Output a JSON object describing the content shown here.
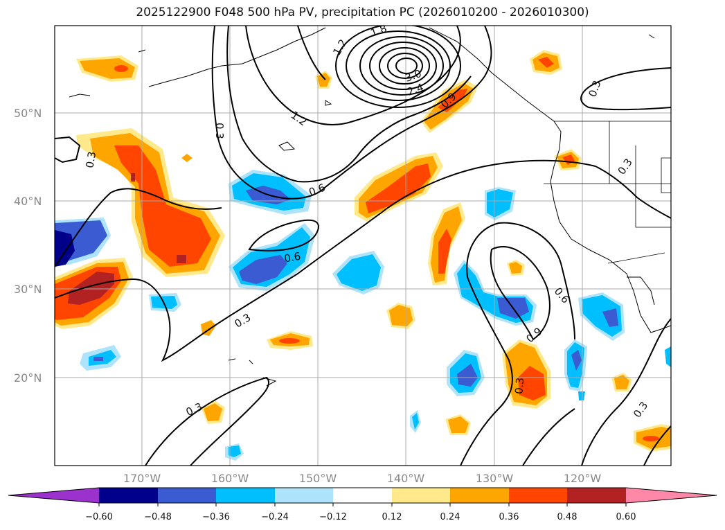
{
  "title": "2025122900 F048 500 hPa PV, precipitation PC (2026010200 - 2026010300)",
  "map": {
    "lat_labels": [
      "50°N",
      "40°N",
      "30°N",
      "20°N"
    ],
    "lon_labels": [
      "170°W",
      "160°W",
      "150°W",
      "140°W",
      "130°W",
      "120°W"
    ],
    "contour_labels": [
      "0.3",
      "0.6",
      "0.9",
      "1.2",
      "1.8",
      "2.4",
      "3.0"
    ]
  },
  "colorbar": {
    "colors": [
      "#9b32cd",
      "#00008b",
      "#3a5bd1",
      "#00bfff",
      "#ade3fb",
      "#ffffff",
      "#ffe98a",
      "#ffa500",
      "#ff4500",
      "#b22222",
      "#ff88a8"
    ],
    "tick_labels": [
      "−0.60",
      "−0.48",
      "−0.36",
      "−0.24",
      "−0.12",
      "0.12",
      "0.24",
      "0.36",
      "0.48",
      "0.60"
    ]
  }
}
